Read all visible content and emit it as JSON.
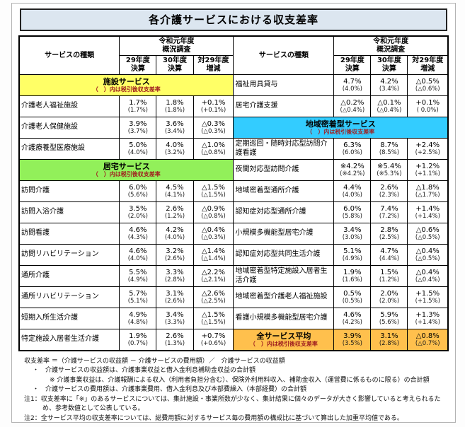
{
  "title": "各介護サービスにおける収支差率",
  "header": {
    "service_type": "サービスの種類",
    "survey": "令和元年度\n概況調査",
    "col_29": "29年度\n決算",
    "col_30": "30年度\n決算",
    "col_diff": "対29年度\n増減"
  },
  "colors": {
    "facility_band": "#ffff66",
    "home_band": "#92f05a",
    "community_band": "#33ccff",
    "average_band": "#ffc04d",
    "title_bg": "#dce6f0",
    "band_note_text": "#a02020"
  },
  "band_note": "（　）内は税引後収支差率",
  "rows": [
    {
      "left": {
        "band": true,
        "label": "施設サービス",
        "color": "#ffff66"
      },
      "right": {
        "name": "福祉用具貸与",
        "v29": "4.7%",
        "v29p": "(4.0%)",
        "v30": "4.2%",
        "v30p": "(3.4%)",
        "diff": "△0.5%",
        "diffp": "(△0.6%)"
      }
    },
    {
      "left": {
        "name": "介護老人福祉施設",
        "v29": "1.7%",
        "v29p": "(1.7%)",
        "v30": "1.8%",
        "v30p": "(1.8%)",
        "diff": "+0.1%",
        "diffp": "(+0.1%)"
      },
      "right": {
        "name": "居宅介護支援",
        "v29": "△0.2%",
        "v29p": "(△0.4%)",
        "v30": "△0.1%",
        "v30p": "(△0.4%)",
        "diff": "+0.1%",
        "diffp": "(  0.0%)"
      }
    },
    {
      "left": {
        "name": "介護老人保健施設",
        "v29": "3.9%",
        "v29p": "(3.7%)",
        "v30": "3.6%",
        "v30p": "(3.4%)",
        "diff": "△0.3%",
        "diffp": "(△0.3%)"
      },
      "right": {
        "band": true,
        "label": "地域密着型サービス",
        "color": "#33ccff"
      }
    },
    {
      "left": {
        "name": "介護療養型医療施設",
        "v29": "5.0%",
        "v29p": "(4.0%)",
        "v30": "4.0%",
        "v30p": "(3.2%)",
        "diff": "△1.0%",
        "diffp": "(△0.8%)"
      },
      "right": {
        "name": "定期巡回・随時対応型訪問介護看護",
        "v29": "6.3%",
        "v29p": "(6.0%)",
        "v30": "8.7%",
        "v30p": "(8.5%)",
        "diff": "+2.4%",
        "diffp": "(+2.5%)"
      }
    },
    {
      "left": {
        "band": true,
        "label": "居宅サービス",
        "color": "#92f05a"
      },
      "right": {
        "name": "夜間対応型訪問介護",
        "v29": "※4.2%",
        "v29p": "(※4.2%)",
        "v30": "※5.4%",
        "v30p": "(※5.3%)",
        "diff": "+1.2%",
        "diffp": "(+1.1%)"
      }
    },
    {
      "left": {
        "name": "訪問介護",
        "v29": "6.0%",
        "v29p": "(5.6%)",
        "v30": "4.5%",
        "v30p": "(4.1%)",
        "diff": "△1.5%",
        "diffp": "(△1.5%)"
      },
      "right": {
        "name": "地域密着型通所介護",
        "v29": "4.4%",
        "v29p": "(4.0%)",
        "v30": "2.6%",
        "v30p": "(2.3%)",
        "diff": "△1.8%",
        "diffp": "(△1.7%)"
      }
    },
    {
      "left": {
        "name": "訪問入浴介護",
        "v29": "3.5%",
        "v29p": "(2.0%)",
        "v30": "2.6%",
        "v30p": "(1.2%)",
        "diff": "△0.9%",
        "diffp": "(△0.8%)"
      },
      "right": {
        "name": "認知症対応型通所介護",
        "v29": "6.0%",
        "v29p": "(5.8%)",
        "v30": "7.4%",
        "v30p": "(7.2%)",
        "diff": "+1.4%",
        "diffp": "(+1.4%)"
      }
    },
    {
      "left": {
        "name": "訪問看護",
        "v29": "4.6%",
        "v29p": "(4.3%)",
        "v30": "4.2%",
        "v30p": "(4.0%)",
        "diff": "△0.4%",
        "diffp": "(△0.3%)"
      },
      "right": {
        "name": "小規模多機能型居宅介護",
        "v29": "3.4%",
        "v29p": "(3.0%)",
        "v30": "2.8%",
        "v30p": "(2.5%)",
        "diff": "△0.6%",
        "diffp": "(△0.5%)"
      }
    },
    {
      "left": {
        "name": "訪問リハビリテーション",
        "v29": "4.6%",
        "v29p": "(4.0%)",
        "v30": "3.2%",
        "v30p": "(2.6%)",
        "diff": "△1.4%",
        "diffp": "(△1.4%)"
      },
      "right": {
        "name": "認知症対応型共同生活介護",
        "v29": "5.1%",
        "v29p": "(4.9%)",
        "v30": "4.7%",
        "v30p": "(4.4%)",
        "diff": "△0.4%",
        "diffp": "(△0.5%)"
      }
    },
    {
      "left": {
        "name": "通所介護",
        "v29": "5.5%",
        "v29p": "(4.9%)",
        "v30": "3.3%",
        "v30p": "(2.8%)",
        "diff": "△2.2%",
        "diffp": "(△2.1%)"
      },
      "right": {
        "name": "地域密着型特定施設入居者生活介護",
        "v29": "1.9%",
        "v29p": "(1.6%)",
        "v30": "1.5%",
        "v30p": "(1.2%)",
        "diff": "△0.4%",
        "diffp": "(△0.4%)"
      }
    },
    {
      "left": {
        "name": "通所リハビリテーション",
        "v29": "5.7%",
        "v29p": "(5.1%)",
        "v30": "3.1%",
        "v30p": "(2.6%)",
        "diff": "△2.6%",
        "diffp": "(△2.5%)"
      },
      "right": {
        "name": "地域密着型介護老人福祉施設",
        "v29": "0.5%",
        "v29p": "(0.5%)",
        "v30": "2.0%",
        "v30p": "(2.0%)",
        "diff": "+1.5%",
        "diffp": "(+1.5%)"
      }
    },
    {
      "left": {
        "name": "短期入所生活介護",
        "v29": "4.9%",
        "v29p": "(4.8%)",
        "v30": "3.4%",
        "v30p": "(3.3%)",
        "diff": "△1.5%",
        "diffp": "(△1.5%)"
      },
      "right": {
        "name": "看護小規模多機能型居宅介護",
        "v29": "4.6%",
        "v29p": "(4.2%)",
        "v30": "5.9%",
        "v30p": "(5.6%)",
        "diff": "+1.3%",
        "diffp": "(+1.4%)"
      }
    },
    {
      "left": {
        "name": "特定施設入居者生活介護",
        "v29": "1.9%",
        "v29p": "(0.7%)",
        "v30": "2.6%",
        "v30p": "(1.3%)",
        "diff": "+0.7%",
        "diffp": "(+0.6%)"
      },
      "right": {
        "avg": true,
        "color": "#ffc04d",
        "name": "全サービス平均",
        "v29": "3.9%",
        "v29p": "(3.5%)",
        "v30": "3.1%",
        "v30p": "(2.8%)",
        "diff": "△0.8%",
        "diffp": "(△0.7%)"
      }
    }
  ],
  "footnotes": [
    {
      "text": "収支差率 ＝（介護サービスの収益額 － 介護サービスの費用額）／　介護サービスの収益額",
      "indent": 0,
      "kind": "line"
    },
    {
      "text": "・　介護サービスの収益額は、介護事業収益と借入金利息補助金収益の合計額",
      "indent": 1,
      "kind": "line"
    },
    {
      "text": "※ 介護事業収益は、介護報酬による収入（利用者負担分含む）、保険外利用料収入、補助金収入（運営費に係るものに限る）の合計額",
      "indent": 2,
      "kind": "line"
    },
    {
      "text": "・　介護サービスの費用額は、介護事業費用、借入金利息及び本部費繰入（本部経費）の合計額",
      "indent": 1,
      "kind": "line"
    },
    {
      "text": "注1：収支差率に「※」のあるサービスについては、集計施設・事業所数が少なく、集計結果に個々のデータが大きく影響していると考えられるため、参考数値として公表している。",
      "indent": 0,
      "kind": "note"
    },
    {
      "text": "注2：全サービス平均の収支差率については、総費用額に対するサービス毎の費用額の構成比に基づいて算出した加重平均値である。",
      "indent": 0,
      "kind": "note"
    }
  ]
}
